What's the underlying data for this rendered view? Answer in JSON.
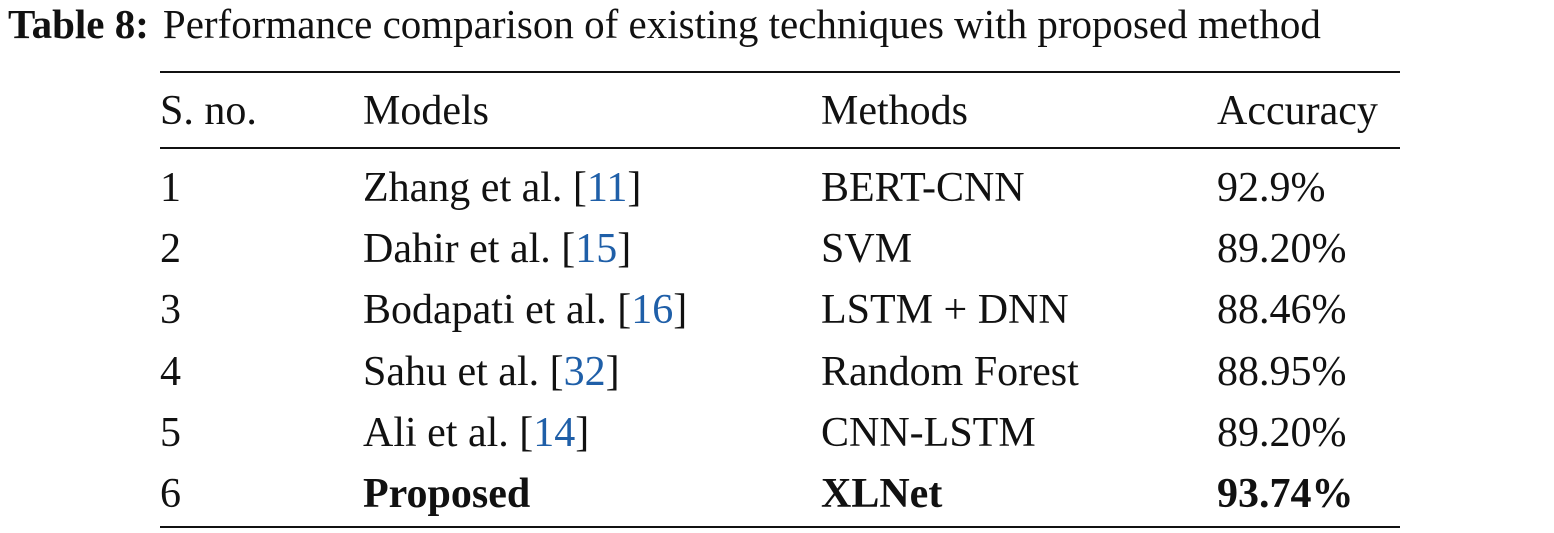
{
  "caption": {
    "label": "Table 8:",
    "text": "Performance comparison of existing techniques with proposed method"
  },
  "table": {
    "header": [
      "S. no.",
      "Models",
      "Methods",
      "Accuracy"
    ],
    "rows": [
      {
        "no": "1",
        "model": "Zhang et al.",
        "cite": [
          "[",
          "11",
          "]"
        ],
        "method": "BERT-CNN",
        "accuracy": "92.9%"
      },
      {
        "no": "2",
        "model": "Dahir et al.",
        "cite": [
          "[",
          "15",
          "]"
        ],
        "method": "SVM",
        "accuracy": "89.20%"
      },
      {
        "no": "3",
        "model": "Bodapati et al.",
        "cite": [
          "[",
          "16",
          "]"
        ],
        "method": "LSTM + DNN",
        "accuracy": "88.46%"
      },
      {
        "no": "4",
        "model": "Sahu et al.",
        "cite": [
          "[",
          "32",
          "]"
        ],
        "method": "Random Forest",
        "accuracy": "88.95%"
      },
      {
        "no": "5",
        "model": "Ali et al.",
        "cite": [
          "[",
          "14",
          "]"
        ],
        "method": "CNN-LSTM",
        "accuracy": "89.20%"
      },
      {
        "no": "6",
        "model": "Proposed",
        "method": "XLNet",
        "accuracy": "93.74%",
        "bold": true
      }
    ]
  }
}
